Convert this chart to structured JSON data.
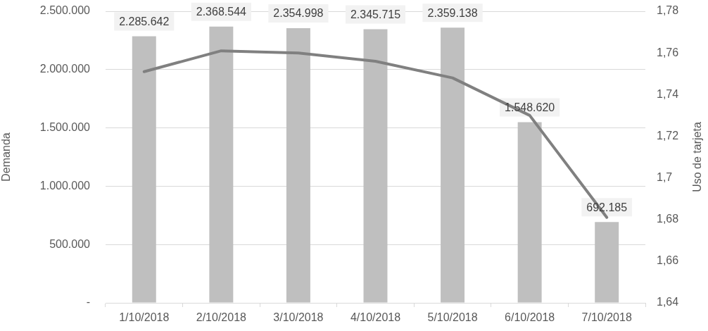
{
  "chart_data": {
    "type": "bar",
    "categories": [
      "1/10/2018",
      "2/10/2018",
      "3/10/2018",
      "4/10/2018",
      "5/10/2018",
      "6/10/2018",
      "7/10/2018"
    ],
    "series": [
      {
        "color": "#bfbfbf",
        "values": [
          2285642,
          2368544,
          2354998,
          2345715,
          2359138,
          1548620,
          692185
        ],
        "value_labels": [
          "2.285.642",
          "2.368.544",
          "2.354.998",
          "2.345.715",
          "2.359.138",
          "1.548.620",
          "692.185"
        ]
      },
      {
        "type": "line",
        "axis": "y2",
        "color": "#808080",
        "values": [
          1.751,
          1.761,
          1.76,
          1.756,
          1.748,
          1.73,
          1.681
        ]
      }
    ],
    "ylabel": "Demanda",
    "y2label": "Uso de tarjeta",
    "ylim": [
      0,
      2500000
    ],
    "yticks": [
      {
        "value": 0,
        "label": "-"
      },
      {
        "value": 500000,
        "label": "500.000"
      },
      {
        "value": 1000000,
        "label": "1.000.000"
      },
      {
        "value": 1500000,
        "label": "1.500.000"
      },
      {
        "value": 2000000,
        "label": "2.000.000"
      },
      {
        "value": 2500000,
        "label": "2.500.000"
      }
    ],
    "y2lim": [
      1.64,
      1.78
    ],
    "y2ticks": [
      {
        "value": 1.64,
        "label": "1,64"
      },
      {
        "value": 1.66,
        "label": "1,66"
      },
      {
        "value": 1.68,
        "label": "1,68"
      },
      {
        "value": 1.7,
        "label": "1,7"
      },
      {
        "value": 1.72,
        "label": "1,72"
      },
      {
        "value": 1.74,
        "label": "1,74"
      },
      {
        "value": 1.76,
        "label": "1,76"
      },
      {
        "value": 1.78,
        "label": "1,78"
      }
    ],
    "grid": "y"
  }
}
